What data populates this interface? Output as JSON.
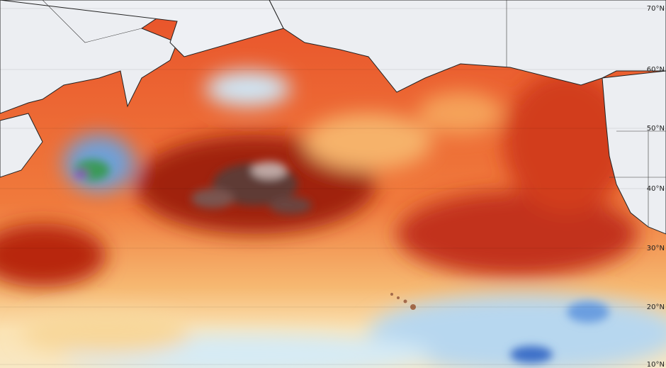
{
  "map": {
    "lat_labels": [
      "70°N",
      "60°N",
      "50°N",
      "40°N",
      "30°N",
      "20°N",
      "10°N"
    ]
  }
}
